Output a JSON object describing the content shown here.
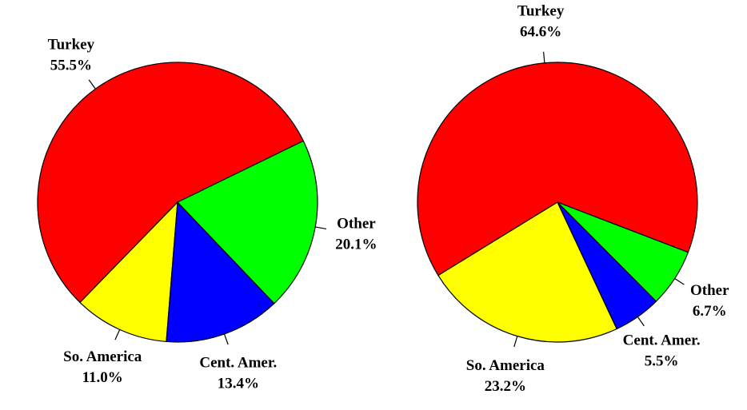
{
  "chart_data": [
    {
      "type": "pie",
      "categories": [
        "Turkey",
        "So. America",
        "Cent. Amer.",
        "Other"
      ],
      "values": [
        55.5,
        11.0,
        13.4,
        20.1
      ],
      "value_labels": [
        "55.5%",
        "11.0%",
        "13.4%",
        "20.1%"
      ],
      "colors": [
        "#ff0000",
        "#ffff00",
        "#0000ff",
        "#00ff00"
      ]
    },
    {
      "type": "pie",
      "categories": [
        "Turkey",
        "So. America",
        "Cent. Amer.",
        "Other"
      ],
      "values": [
        64.6,
        23.2,
        5.5,
        6.7
      ],
      "value_labels": [
        "64.6%",
        "23.2%",
        "5.5%",
        "6.7%"
      ],
      "colors": [
        "#ff0000",
        "#ffff00",
        "#0000ff",
        "#00ff00"
      ]
    }
  ]
}
